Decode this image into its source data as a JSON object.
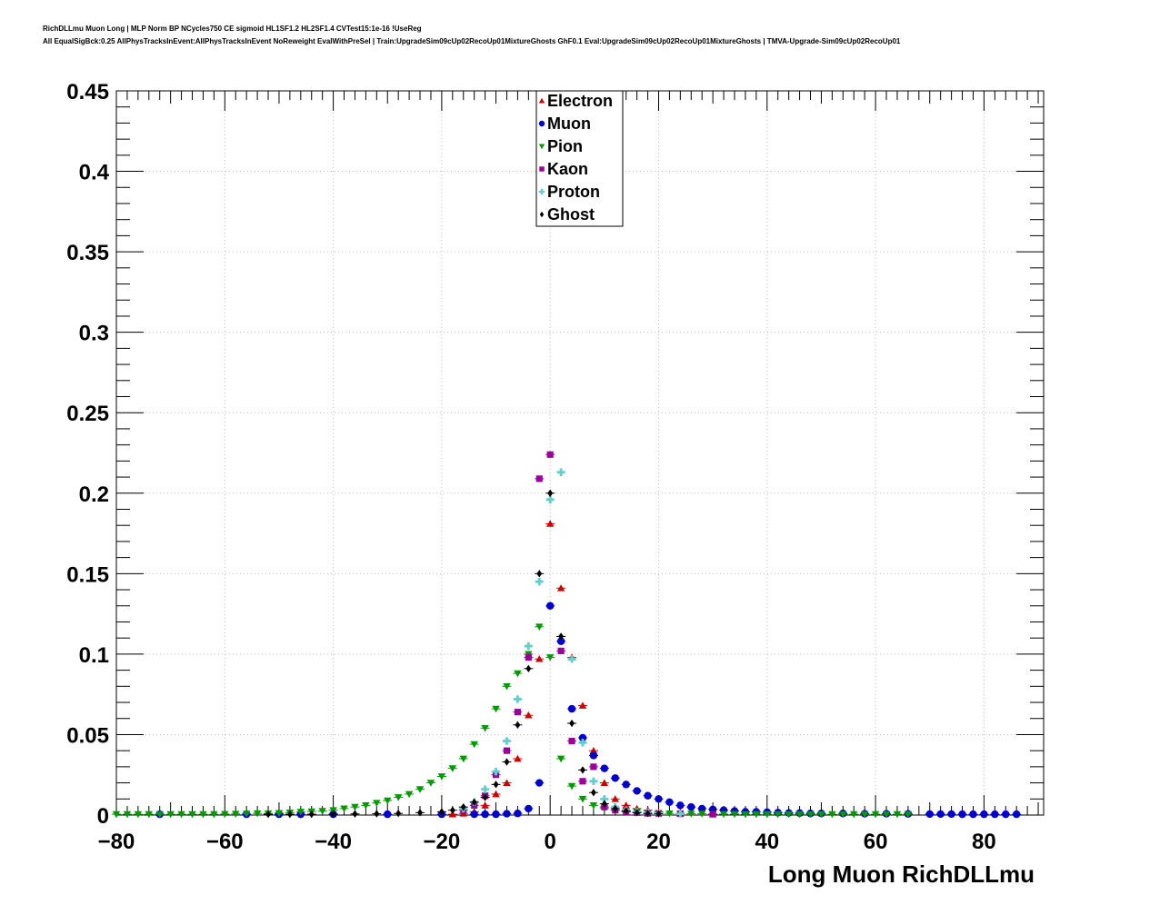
{
  "header": {
    "title_line1": "RichDLLmu Muon Long | MLP Norm BP NCycles750 CE sigmoid HL1SF1.2 HL2SF1.4 CVTest15:1e-16 !UseReg",
    "title_line2": "All EqualSigBck:0.25 AllPhysTracksInEvent:AllPhysTracksInEvent NoReweight EvalWithPreSel | Train:UpgradeSim09cUp02RecoUp01MixtureGhosts GhF0.1 Eval:UpgradeSim09cUp02RecoUp01MixtureGhosts | TMVA-Upgrade-Sim09cUp02RecoUp01"
  },
  "chart_data": {
    "type": "scatter",
    "xlabel": "Long Muon RichDLLmu",
    "ylabel": "",
    "xlim": [
      -80,
      91
    ],
    "ylim": [
      0,
      0.45
    ],
    "grid": true,
    "legend_position": "top-center",
    "x_ticks": [
      "−80",
      "−60",
      "−40",
      "−20",
      "0",
      "20",
      "40",
      "60",
      "80"
    ],
    "y_ticks": [
      "0",
      "0.05",
      "0.1",
      "0.15",
      "0.2",
      "0.25",
      "0.3",
      "0.35",
      "0.4",
      "0.45"
    ],
    "series": [
      {
        "name": "Electron",
        "color": "#cc0000",
        "marker": "triangle-up",
        "x": [
          -18,
          -16,
          -14,
          -12,
          -10,
          -8,
          -6,
          -4,
          -2,
          0,
          2,
          4,
          6,
          8,
          10,
          12,
          14,
          16,
          18,
          20,
          24,
          30
        ],
        "y": [
          0.0005,
          0.001,
          0.002,
          0.006,
          0.013,
          0.02,
          0.035,
          0.062,
          0.097,
          0.181,
          0.141,
          0.098,
          0.068,
          0.04,
          0.02,
          0.01,
          0.006,
          0.004,
          0.003,
          0.002,
          0.001,
          0.0005
        ]
      },
      {
        "name": "Muon",
        "color": "#0000cc",
        "marker": "circle",
        "x": [
          -72,
          -56,
          -50,
          -46,
          -40,
          -30,
          -20,
          -14,
          -12,
          -10,
          -8,
          -6,
          -4,
          -2,
          0,
          2,
          4,
          6,
          8,
          10,
          12,
          14,
          16,
          18,
          20,
          22,
          24,
          26,
          28,
          30,
          32,
          34,
          36,
          38,
          40,
          42,
          44,
          46,
          48,
          50,
          54,
          58,
          62,
          66,
          70,
          72,
          74,
          76,
          78,
          80,
          82,
          84,
          86
        ],
        "y": [
          0.0005,
          0.0005,
          0.0005,
          0.0005,
          0.0005,
          0.0005,
          0.0005,
          0.0005,
          0.0005,
          0.0005,
          0.0008,
          0.001,
          0.004,
          0.02,
          0.13,
          0.108,
          0.066,
          0.048,
          0.037,
          0.029,
          0.023,
          0.019,
          0.015,
          0.012,
          0.01,
          0.008,
          0.006,
          0.005,
          0.004,
          0.0035,
          0.003,
          0.0025,
          0.002,
          0.002,
          0.0018,
          0.0015,
          0.0013,
          0.0012,
          0.001,
          0.001,
          0.001,
          0.0008,
          0.0008,
          0.0007,
          0.0006,
          0.0006,
          0.0006,
          0.0005,
          0.0005,
          0.0005,
          0.0005,
          0.0005,
          0.0005
        ]
      },
      {
        "name": "Pion",
        "color": "#009900",
        "marker": "triangle-down",
        "x": [
          -80,
          -78,
          -76,
          -74,
          -72,
          -70,
          -68,
          -66,
          -64,
          -62,
          -60,
          -58,
          -56,
          -54,
          -52,
          -50,
          -48,
          -46,
          -44,
          -42,
          -40,
          -38,
          -36,
          -34,
          -32,
          -30,
          -28,
          -26,
          -24,
          -22,
          -20,
          -18,
          -16,
          -14,
          -12,
          -10,
          -8,
          -6,
          -4,
          -2,
          0,
          2,
          4,
          6,
          8,
          10,
          12,
          14,
          16,
          18,
          20,
          22,
          24,
          26,
          28,
          30,
          32,
          34,
          36,
          38,
          40,
          42,
          44,
          46,
          48,
          50,
          52,
          54,
          56,
          58,
          60,
          62,
          64,
          66
        ],
        "y": [
          0.0005,
          0.0005,
          0.0005,
          0.0005,
          0.0005,
          0.0005,
          0.0005,
          0.0005,
          0.0005,
          0.0005,
          0.0006,
          0.0007,
          0.0008,
          0.001,
          0.001,
          0.0012,
          0.0015,
          0.002,
          0.0022,
          0.0025,
          0.003,
          0.004,
          0.005,
          0.006,
          0.0075,
          0.009,
          0.011,
          0.013,
          0.016,
          0.02,
          0.024,
          0.029,
          0.035,
          0.044,
          0.054,
          0.066,
          0.08,
          0.088,
          0.1,
          0.117,
          0.098,
          0.035,
          0.018,
          0.01,
          0.006,
          0.004,
          0.003,
          0.002,
          0.002,
          0.0015,
          0.0012,
          0.001,
          0.001,
          0.0008,
          0.0008,
          0.0007,
          0.0006,
          0.0006,
          0.0005,
          0.0005,
          0.0005,
          0.0005,
          0.0005,
          0.0005,
          0.0005,
          0.0005,
          0.0005,
          0.0005,
          0.0005,
          0.0005,
          0.0005,
          0.0005,
          0.0005,
          0.0005
        ]
      },
      {
        "name": "Kaon",
        "color": "#990099",
        "marker": "square",
        "x": [
          -16,
          -14,
          -12,
          -10,
          -8,
          -6,
          -4,
          -2,
          0,
          2,
          4,
          6,
          8,
          10,
          12,
          14,
          16,
          18,
          20,
          24,
          30
        ],
        "y": [
          0.003,
          0.006,
          0.012,
          0.025,
          0.04,
          0.064,
          0.098,
          0.209,
          0.224,
          0.102,
          0.046,
          0.021,
          0.03,
          0.005,
          0.003,
          0.002,
          0.0015,
          0.001,
          0.001,
          0.0008,
          0.0005
        ]
      },
      {
        "name": "Proton",
        "color": "#66cccc",
        "marker": "cross",
        "x": [
          -16,
          -14,
          -12,
          -10,
          -8,
          -6,
          -4,
          -2,
          0,
          2,
          4,
          6,
          8,
          10,
          12,
          14,
          16,
          18,
          20,
          24
        ],
        "y": [
          0.004,
          0.008,
          0.016,
          0.027,
          0.046,
          0.072,
          0.105,
          0.145,
          0.196,
          0.213,
          0.097,
          0.045,
          0.021,
          0.01,
          0.005,
          0.003,
          0.002,
          0.0015,
          0.001,
          0.0008
        ]
      },
      {
        "name": "Ghost",
        "color": "#000000",
        "marker": "diamond",
        "x": [
          -52,
          -48,
          -44,
          -40,
          -36,
          -32,
          -28,
          -24,
          -20,
          -18,
          -16,
          -14,
          -12,
          -10,
          -8,
          -6,
          -4,
          -2,
          0,
          2,
          4,
          6,
          8,
          10,
          12,
          14,
          16,
          18,
          20
        ],
        "y": [
          0.0005,
          0.0005,
          0.0005,
          0.0006,
          0.0007,
          0.0008,
          0.001,
          0.0015,
          0.002,
          0.003,
          0.005,
          0.008,
          0.011,
          0.019,
          0.033,
          0.056,
          0.091,
          0.15,
          0.2,
          0.111,
          0.057,
          0.028,
          0.014,
          0.007,
          0.004,
          0.0025,
          0.0015,
          0.001,
          0.0008
        ]
      }
    ]
  }
}
